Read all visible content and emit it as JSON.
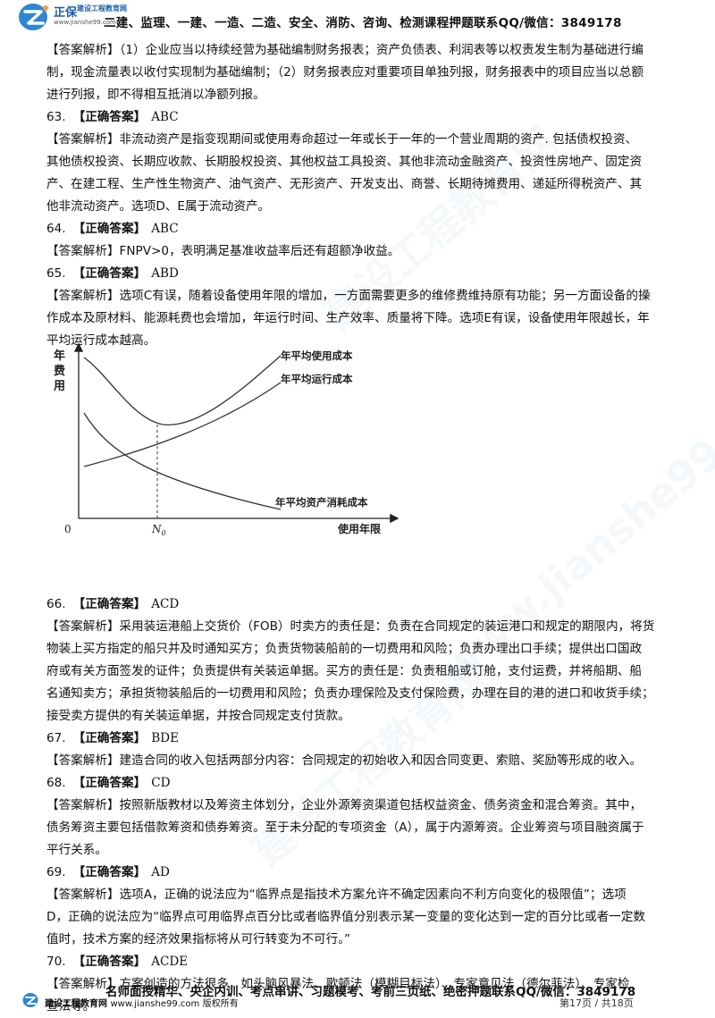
{
  "header": {
    "brand": "正保",
    "brand_sub": "建设工程教育网",
    "brand_url": "www.jianshe99.com",
    "text": "二建、监理、一建、一造、二造、安全、消防、咨询、检测课程押题联系QQ/微信：3849178"
  },
  "content": {
    "intro_lines": [
      "【答案解析】（1）企业应当以持续经营为基础编制财务报表；资产负债表、利润表等以权责发生制为基础进行编",
      "制，现金流量表以收付实现制为基础编制；（2）财务报表应对重要项目单独列报，财务报表中的项目应当以总额",
      "进行列报，即不得相互抵消以净额列报。"
    ],
    "q63": {
      "num": "63.",
      "label": "【正确答案】",
      "answer": "ABC",
      "lines": [
        "【答案解析】非流动资产是指变现期间或使用寿命超过一年或长于一年的一个营业周期的资产. 包括债权投资、",
        "其他债权投资、长期应收款、长期股权投资、其他权益工具投资、其他非流动金融资产、投资性房地产、固定资",
        "产、在建工程、生产性生物资产、油气资产、无形资产、开发支出、商誉、长期待摊费用、递延所得税资产、其",
        "他非流动资产。选项D、E属于流动资产。"
      ]
    },
    "q64": {
      "num": "64.",
      "label": "【正确答案】",
      "answer": "ABC",
      "lines": [
        "【答案解析】FNPV>0，表明满足基准收益率后还有超额净收益。"
      ]
    },
    "q65": {
      "num": "65.",
      "label": "【正确答案】",
      "answer": "ABD",
      "lines": [
        "【答案解析】选项C有误，随着设备使用年限的增加，一方面需要更多的维修费维持原有功能；另一方面设备的操",
        "作成本及原材料、能源耗费也会增加，年运行时间、生产效率、质量将下降。选项E有误，设备使用年限越长，年",
        "平均运行成本越高。"
      ]
    },
    "q66": {
      "num": "66.",
      "label": "【正确答案】",
      "answer": "ACD",
      "lines": [
        "【答案解析】采用装运港船上交货价（FOB）时卖方的责任是：负责在合同规定的装运港口和规定的期限内，将货",
        "物装上买方指定的船只并及时通知买方；负责货物装船前的一切费用和风险；负责办理出口手续；提供出口国政",
        "府或有关方面签发的证件；负责提供有关装运单据。买方的责任是：负责租船或订舱，支付运费，并将船期、船",
        "名通知卖方；承担货物装船后的一切费用和风险；负责办理保险及支付保险费，办理在目的港的进口和收货手续；",
        "接受卖方提供的有关装运单据，并按合同规定支付货款。"
      ]
    },
    "q67": {
      "num": "67.",
      "label": "【正确答案】",
      "answer": "BDE",
      "lines": [
        "【答案解析】建造合同的收入包括两部分内容：合同规定的初始收入和因合同变更、索赔、奖励等形成的收入。"
      ]
    },
    "q68": {
      "num": "68.",
      "label": "【正确答案】",
      "answer": "CD",
      "lines": [
        "【答案解析】按照新版教材以及筹资主体划分，企业外源筹资渠道包括权益资金、债务资金和混合筹资。其中，",
        "债务筹资主要包括借款筹资和债券筹资。至于未分配的专项资金（A），属于内源筹资。企业筹资与项目融资属于",
        "平行关系。"
      ]
    },
    "q69": {
      "num": "69.",
      "label": "【正确答案】",
      "answer": "AD",
      "lines": [
        "【答案解析】选项A，正确的说法应为“临界点是指技术方案允许不确定因素向不利方向变化的极限值”；选项",
        "D，正确的说法应为“临界点可用临界点百分比或者临界值分别表示某一变量的变化达到一定的百分比或者一定数",
        "值时，技术方案的经济效果指标将从可行转变为不可行。”"
      ]
    },
    "q70": {
      "num": "70.",
      "label": "【正确答案】",
      "answer": "ACDE",
      "lines": [
        "【答案解析】方案创造的方法很多，如头脑风暴法、歌顿法（模糊目标法）、专家意见法（德尔菲法）、专家检",
        "查法等。"
      ]
    }
  },
  "chart_data": {
    "type": "line",
    "ylabel": "年费用",
    "xlabel": "使用年限",
    "origin_label": "0",
    "marker_label": "N",
    "marker_sub": "0",
    "series": [
      {
        "name": "年平均使用成本",
        "shape": "U-curve, minimum at N0"
      },
      {
        "name": "年平均运行成本",
        "shape": "increasing"
      },
      {
        "name": "年平均资产消耗成本",
        "shape": "decreasing"
      }
    ],
    "grid": false
  },
  "footer": {
    "line1": "名师面授精华、央企内训、考点串讲、习题模考、考前三页纸、绝密押题联系QQ/微信：3849178",
    "brand": "建设工程教育网",
    "url": "www.jianshe99.com",
    "rights": "版权所有",
    "page": "第17页 / 共18页"
  },
  "colors": {
    "brand": "#1b5fa8",
    "text": "#111111"
  }
}
